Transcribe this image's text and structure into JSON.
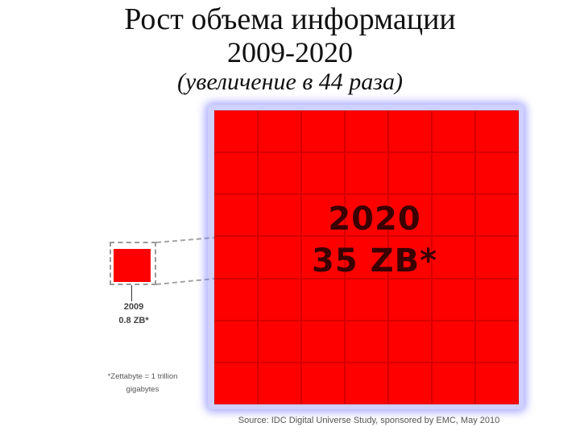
{
  "title": {
    "line1": "Рост объема информации",
    "line2": "2009-2020",
    "line3": "(увеличение в 44 раза)"
  },
  "small_block": {
    "year": "2009",
    "value": "0.8 ZB*",
    "color": "#ff0000"
  },
  "large_block": {
    "year": "2020",
    "value": "35 ZB*",
    "color": "#ff0000",
    "glow_color": "#7878ff"
  },
  "footnote": "*Zettabyte = 1 trillion gigabytes",
  "source": "Source: IDC Digital Universe Study, sponsored by EMC, May 2010"
}
